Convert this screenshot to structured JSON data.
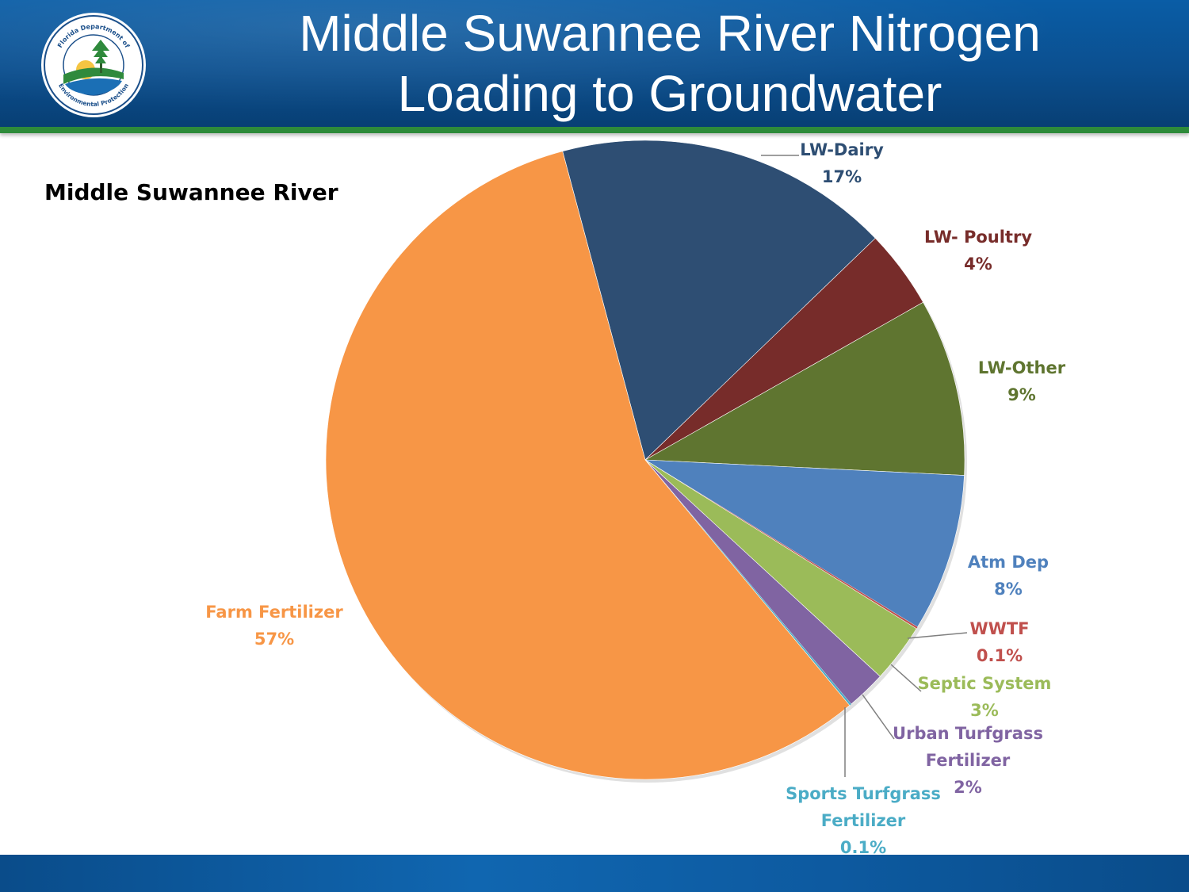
{
  "slide": {
    "title_line1": "Middle Suwannee River Nitrogen",
    "title_line2": "Loading to Groundwater",
    "logo_text_top": "Florida Department of",
    "logo_text_bottom": "Environmental Protection"
  },
  "colors": {
    "header_blue": "#0b4f8f",
    "header_green_rule": "#2e8b3a"
  },
  "chart_data": {
    "type": "pie",
    "title": "Middle Suwannee River",
    "slices": [
      {
        "label": "LW-Dairy",
        "value": 17,
        "display": "17%",
        "color": "#2e4e73",
        "text_color": "#2e4e73"
      },
      {
        "label": "LW- Poultry",
        "value": 4,
        "display": "4%",
        "color": "#772c2a",
        "text_color": "#772c2a"
      },
      {
        "label": "LW-Other",
        "value": 9,
        "display": "9%",
        "color": "#5f7530",
        "text_color": "#5f7530"
      },
      {
        "label": "Atm Dep",
        "value": 8,
        "display": "8%",
        "color": "#4f81bd",
        "text_color": "#4f81bd"
      },
      {
        "label": "WWTF",
        "value": 0.1,
        "display": "0.1%",
        "color": "#c0504d",
        "text_color": "#c0504d"
      },
      {
        "label": "Septic System",
        "value": 3,
        "display": "3%",
        "color": "#9bbb59",
        "text_color": "#9bbb59"
      },
      {
        "label": "Urban Turfgrass Fertilizer",
        "value": 2,
        "display": "2%",
        "color": "#8064a2",
        "text_color": "#8064a2"
      },
      {
        "label": "Sports Turfgrass Fertilizer",
        "value": 0.1,
        "display": "0.1%",
        "color": "#4bacc6",
        "text_color": "#4bacc6"
      },
      {
        "label": "Farm Fertilizer",
        "value": 57,
        "display": "57%",
        "color": "#f79646",
        "text_color": "#f79646"
      }
    ],
    "legend": "none",
    "start_angle_deg": -15
  }
}
